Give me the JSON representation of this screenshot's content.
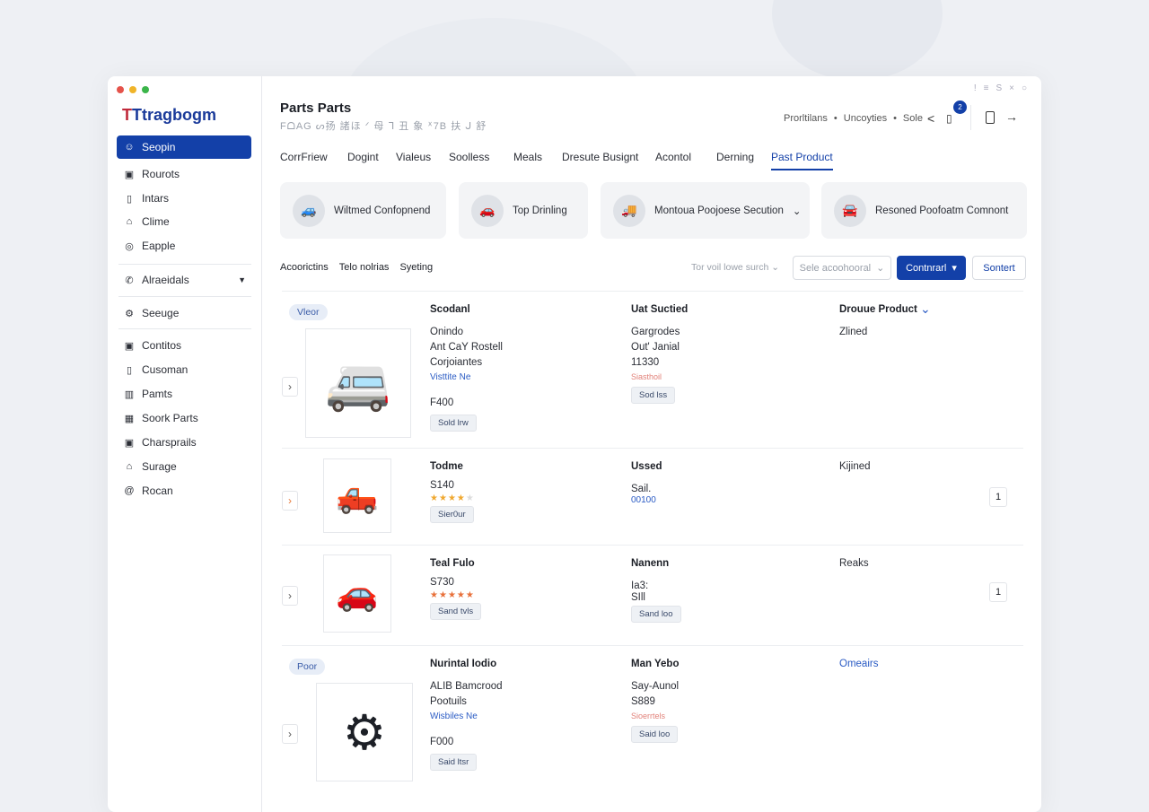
{
  "window": {
    "controls_colors": [
      "#e5534b",
      "#f0b429",
      "#3bb54a"
    ],
    "top_right_icons": [
      "!",
      "≡",
      "S",
      "×",
      "○"
    ]
  },
  "sidebar": {
    "logo": "Ttragbogm",
    "items": [
      {
        "label": "Seopin",
        "icon": "user-icon",
        "active": true
      },
      {
        "label": "Rourots",
        "icon": "box-icon"
      },
      {
        "label": "Intars",
        "icon": "doc-icon"
      },
      {
        "label": "Clime",
        "icon": "home-icon"
      },
      {
        "label": "Eapple",
        "icon": "pin-icon"
      },
      {
        "label": "Alraeidals",
        "icon": "phone-icon",
        "dropdown": true
      },
      {
        "label": "Seeuge",
        "icon": "settings-icon"
      },
      {
        "label": "Contitos",
        "icon": "box-icon"
      },
      {
        "label": "Cusoman",
        "icon": "doc-icon"
      },
      {
        "label": "Pamts",
        "icon": "chart-icon"
      },
      {
        "label": "Soork Parts",
        "icon": "grid-icon"
      },
      {
        "label": "Charsprails",
        "icon": "box-icon"
      },
      {
        "label": "Surage",
        "icon": "home-icon"
      },
      {
        "label": "Rocan",
        "icon": "at-icon"
      }
    ]
  },
  "header": {
    "title": "Parts Parts",
    "subtitle": "FᗝAG ᔕ扬 諸ほ ᐟ 母 ᒣ 丑 象 ᕁ7B 扶 ᒍ 舒",
    "links": [
      "Prorltilans",
      "Uncoyties",
      "Sole"
    ],
    "notification_count": "2"
  },
  "tabs": [
    "CorrFriew",
    "Dogint",
    "Vialeus",
    "Soolless",
    "Meals",
    "Dresute Busignt",
    "Acontol",
    "Derning",
    "Past Product"
  ],
  "active_tab": "Past Product",
  "categories": [
    "Wiltmed Confopnend",
    "Top Drinling",
    "Montoua Poojoese Secution",
    "Resoned Poofoatm Comnont"
  ],
  "filters": {
    "links": [
      "Acoorictins",
      "Telo nolrias",
      "Syeting"
    ],
    "sort_label": "Tor voil lowe surch",
    "select_placeholder": "Sele acoohooral",
    "primary_button": "Contnrarl",
    "secondary_button": "Sontert"
  },
  "accent": "#1340a8",
  "rows": [
    {
      "pill": "Vleor",
      "col1": {
        "title": "Scodanl",
        "lines": [
          "Onindo",
          "Ant CaY Rostell",
          "Corjoiantes"
        ],
        "link": "Visttite Ne",
        "price": "F400",
        "tag": "Sold lrw"
      },
      "col2": {
        "title": "Uat Suctied",
        "lines": [
          "Gargrodes",
          "Out' Janial",
          "11330"
        ],
        "red": "Siasthoil",
        "tag": "Sod lss"
      },
      "col3": {
        "title": "Drouue Product",
        "lines": [
          "Zlined"
        ]
      }
    },
    {
      "col1": {
        "title": "Todme",
        "price": "S140",
        "rating": 4,
        "tag": "Sier0ur"
      },
      "col2": {
        "title": "Ussed",
        "lines": [
          "Sail."
        ],
        "blue": "00100"
      },
      "col3": {
        "title": "Kijined"
      },
      "count": "1"
    },
    {
      "col1": {
        "title": "Teal Fulo",
        "price": "S730",
        "rating": 5,
        "tag": "Sand tvls"
      },
      "col2": {
        "title": "Nanenn",
        "lines": [
          "Ia3:",
          "SIll"
        ],
        "tag": "Sand loo"
      },
      "col3": {
        "title": "Reaks"
      },
      "count": "1"
    },
    {
      "pill": "Poor",
      "col1": {
        "title": "Nurintal Iodio",
        "lines": [
          "ALIB Bamcrood",
          "Pootuils"
        ],
        "link": "Wisbiles Ne",
        "price": "F000",
        "tag": "Said ltsr"
      },
      "col2": {
        "title": "Man Yebo",
        "lines": [
          "Say-Aunol",
          "S889"
        ],
        "red": "Sioerrtels",
        "tag": "Said loo"
      },
      "col3": {
        "title": "Omeairs"
      }
    }
  ]
}
